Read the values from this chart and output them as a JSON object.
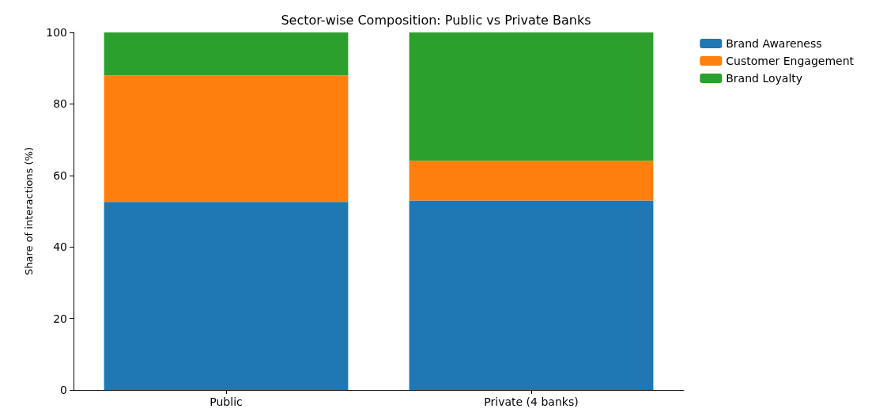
{
  "chart_data": {
    "type": "bar",
    "title": "Sector-wise Composition: Public vs Private Banks",
    "ylabel": "Share of interactions (%)",
    "categories": [
      "Public",
      "Private (4 banks)"
    ],
    "stacked": true,
    "series": [
      {
        "name": "Brand Awareness",
        "color": "#1f77b4",
        "values": [
          52.6,
          53.0
        ]
      },
      {
        "name": "Customer Engagement",
        "color": "#ff7f0e",
        "values": [
          35.4,
          11.1
        ]
      },
      {
        "name": "Brand Loyalty",
        "color": "#2ca02c",
        "values": [
          12.0,
          35.9
        ]
      }
    ],
    "ylim": [
      0,
      100
    ],
    "yticks": [
      0,
      20,
      40,
      60,
      80,
      100
    ],
    "grid": false,
    "legend": "top right"
  }
}
